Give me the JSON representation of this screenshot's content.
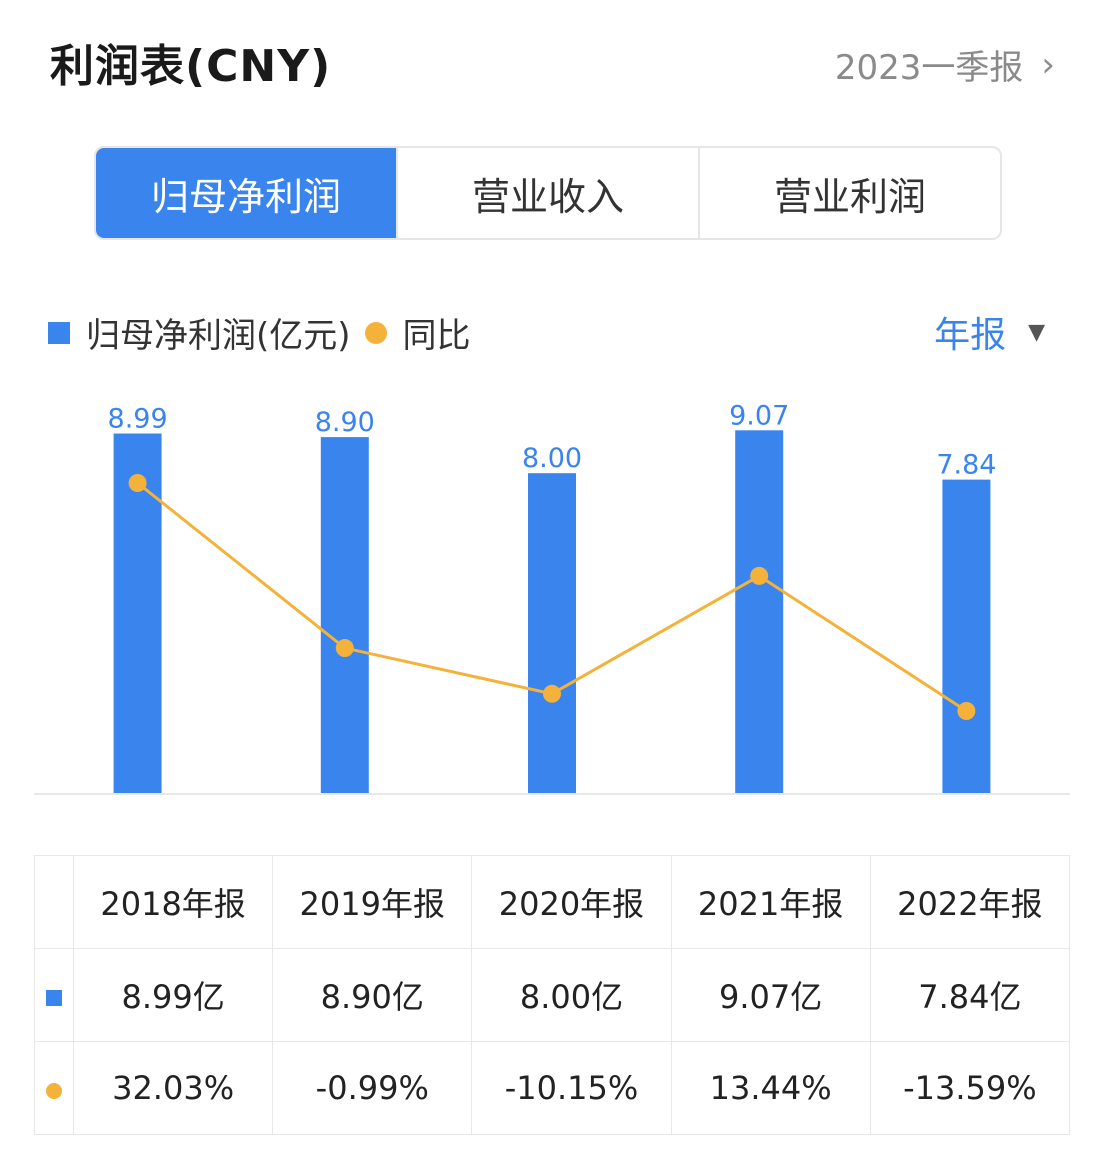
{
  "header": {
    "title": "利润表(CNY)",
    "period": "2023一季报",
    "period_chevron": "chevron-right-icon"
  },
  "tabs": [
    {
      "label": "归母净利润",
      "active": true
    },
    {
      "label": "营业收入",
      "active": false
    },
    {
      "label": "营业利润",
      "active": false
    }
  ],
  "legend": {
    "bar_label": "归母净利润(亿元)",
    "line_label": "同比"
  },
  "frequency": {
    "label": "年报",
    "caret": "caret-down-icon"
  },
  "colors": {
    "bar": "#3a84ee",
    "line": "#f5b23a",
    "positive": "#e0403a",
    "negative": "#1f9a5a"
  },
  "chart_data": {
    "type": "bar",
    "categories": [
      "2018年报",
      "2019年报",
      "2020年报",
      "2021年报",
      "2022年报"
    ],
    "series": [
      {
        "name": "归母净利润(亿元)",
        "type": "bar",
        "values": [
          8.99,
          8.9,
          8.0,
          9.07,
          7.84
        ]
      },
      {
        "name": "同比",
        "type": "line",
        "values": [
          32.03,
          -0.99,
          -10.15,
          13.44,
          -13.59
        ]
      }
    ],
    "data_labels": [
      "8.99",
      "8.90",
      "8.00",
      "9.07",
      "7.84"
    ],
    "grid": false
  },
  "table": {
    "headers": [
      "2018年报",
      "2019年报",
      "2020年报",
      "2021年报",
      "2022年报"
    ],
    "profit_row": [
      "8.99亿",
      "8.90亿",
      "8.00亿",
      "9.07亿",
      "7.84亿"
    ],
    "yoy_row": [
      "32.03%",
      "-0.99%",
      "-10.15%",
      "13.44%",
      "-13.59%"
    ]
  }
}
